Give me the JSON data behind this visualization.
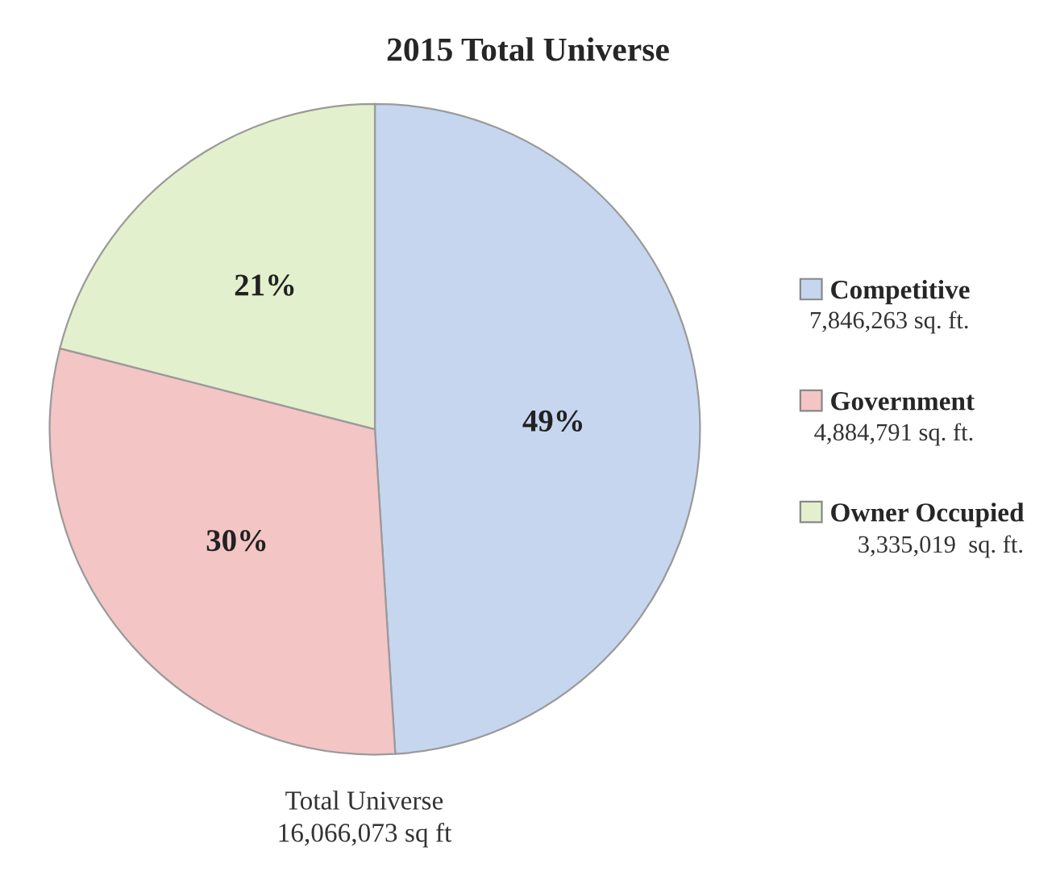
{
  "chart_data": {
    "type": "pie",
    "title": "2015 Total Universe",
    "categories": [
      "Competitive",
      "Government",
      "Owner Occupied"
    ],
    "values": [
      49,
      30,
      21
    ],
    "colors": [
      "#c6d6ef",
      "#f3c5c5",
      "#e3f0cd"
    ],
    "value_labels": [
      "49%",
      "30%",
      "21%"
    ],
    "legend": "right",
    "annotations": [
      "7,846,263 sq. ft.",
      "4,884,791 sq. ft.",
      "3,335,019  sq. ft.",
      "Total Universe\n16,066,073 sq ft"
    ]
  }
}
